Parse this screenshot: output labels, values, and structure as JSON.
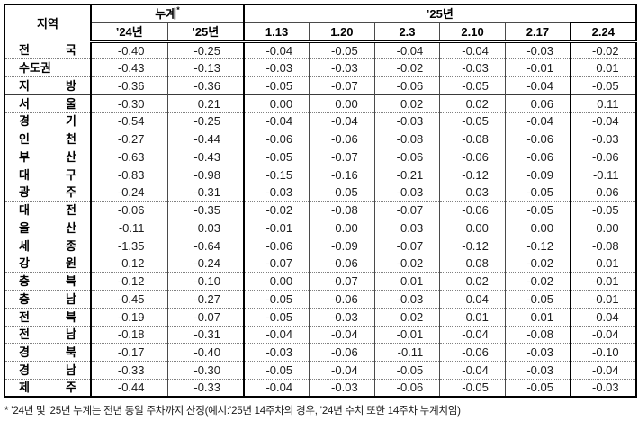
{
  "table": {
    "region_header": "지역",
    "cumulative_header": {
      "label": "누계",
      "sup": "*"
    },
    "year_group_header": "’25년",
    "sub_headers": [
      "’24년",
      "’25년",
      "1.13",
      "1.20",
      "2.3",
      "2.10",
      "2.17",
      "2.24"
    ],
    "rows": [
      {
        "name": "전 국",
        "values": [
          "-0.40",
          "-0.25",
          "-0.04",
          "-0.05",
          "-0.04",
          "-0.04",
          "-0.03",
          "-0.02"
        ]
      },
      {
        "name": "수도권",
        "values": [
          "-0.43",
          "-0.13",
          "-0.03",
          "-0.03",
          "-0.02",
          "-0.03",
          "-0.01",
          "0.01"
        ]
      },
      {
        "name": "지 방",
        "values": [
          "-0.36",
          "-0.36",
          "-0.05",
          "-0.07",
          "-0.06",
          "-0.05",
          "-0.04",
          "-0.05"
        ]
      },
      {
        "name": "서 울",
        "values": [
          "-0.30",
          "0.21",
          "0.00",
          "0.00",
          "0.02",
          "0.02",
          "0.06",
          "0.11"
        ]
      },
      {
        "name": "경 기",
        "values": [
          "-0.54",
          "-0.25",
          "-0.04",
          "-0.04",
          "-0.03",
          "-0.05",
          "-0.04",
          "-0.04"
        ]
      },
      {
        "name": "인 천",
        "values": [
          "-0.27",
          "-0.44",
          "-0.06",
          "-0.06",
          "-0.08",
          "-0.08",
          "-0.06",
          "-0.03"
        ]
      },
      {
        "name": "부 산",
        "values": [
          "-0.63",
          "-0.43",
          "-0.05",
          "-0.07",
          "-0.06",
          "-0.06",
          "-0.06",
          "-0.06"
        ]
      },
      {
        "name": "대 구",
        "values": [
          "-0.83",
          "-0.98",
          "-0.15",
          "-0.16",
          "-0.21",
          "-0.12",
          "-0.09",
          "-0.11"
        ]
      },
      {
        "name": "광 주",
        "values": [
          "-0.24",
          "-0.31",
          "-0.03",
          "-0.05",
          "-0.03",
          "-0.03",
          "-0.05",
          "-0.06"
        ]
      },
      {
        "name": "대 전",
        "values": [
          "-0.06",
          "-0.35",
          "-0.02",
          "-0.08",
          "-0.07",
          "-0.06",
          "-0.05",
          "-0.05"
        ]
      },
      {
        "name": "울 산",
        "values": [
          "-0.11",
          "0.03",
          "-0.01",
          "0.00",
          "0.03",
          "0.00",
          "0.00",
          "0.00"
        ]
      },
      {
        "name": "세 종",
        "values": [
          "-1.35",
          "-0.64",
          "-0.06",
          "-0.09",
          "-0.07",
          "-0.12",
          "-0.12",
          "-0.08"
        ]
      },
      {
        "name": "강 원",
        "values": [
          "0.12",
          "-0.24",
          "-0.07",
          "-0.06",
          "-0.02",
          "-0.08",
          "-0.02",
          "0.01"
        ]
      },
      {
        "name": "충 북",
        "values": [
          "-0.12",
          "-0.10",
          "0.00",
          "-0.07",
          "0.01",
          "0.02",
          "-0.02",
          "-0.01"
        ]
      },
      {
        "name": "충 남",
        "values": [
          "-0.45",
          "-0.27",
          "-0.05",
          "-0.06",
          "-0.03",
          "-0.04",
          "-0.05",
          "-0.01"
        ]
      },
      {
        "name": "전 북",
        "values": [
          "-0.19",
          "-0.07",
          "-0.05",
          "-0.03",
          "0.02",
          "-0.01",
          "0.01",
          "0.04"
        ]
      },
      {
        "name": "전 남",
        "values": [
          "-0.18",
          "-0.31",
          "-0.04",
          "-0.04",
          "-0.01",
          "-0.04",
          "-0.08",
          "-0.04"
        ]
      },
      {
        "name": "경 북",
        "values": [
          "-0.17",
          "-0.40",
          "-0.03",
          "-0.06",
          "-0.11",
          "-0.06",
          "-0.03",
          "-0.10"
        ]
      },
      {
        "name": "경 남",
        "values": [
          "-0.33",
          "-0.30",
          "-0.05",
          "-0.04",
          "-0.05",
          "-0.04",
          "-0.03",
          "-0.04"
        ]
      },
      {
        "name": "제 주",
        "values": [
          "-0.44",
          "-0.33",
          "-0.04",
          "-0.03",
          "-0.06",
          "-0.05",
          "-0.05",
          "-0.03"
        ]
      }
    ],
    "group_start_rows": [
      3,
      6,
      12
    ]
  },
  "footnote": "* ’24년 및 ’25년 누계는 전년 동일 주차까지 산정(예시:’25년 14주차의 경우, ’24년 수치 또한 14주차 누계치임)"
}
